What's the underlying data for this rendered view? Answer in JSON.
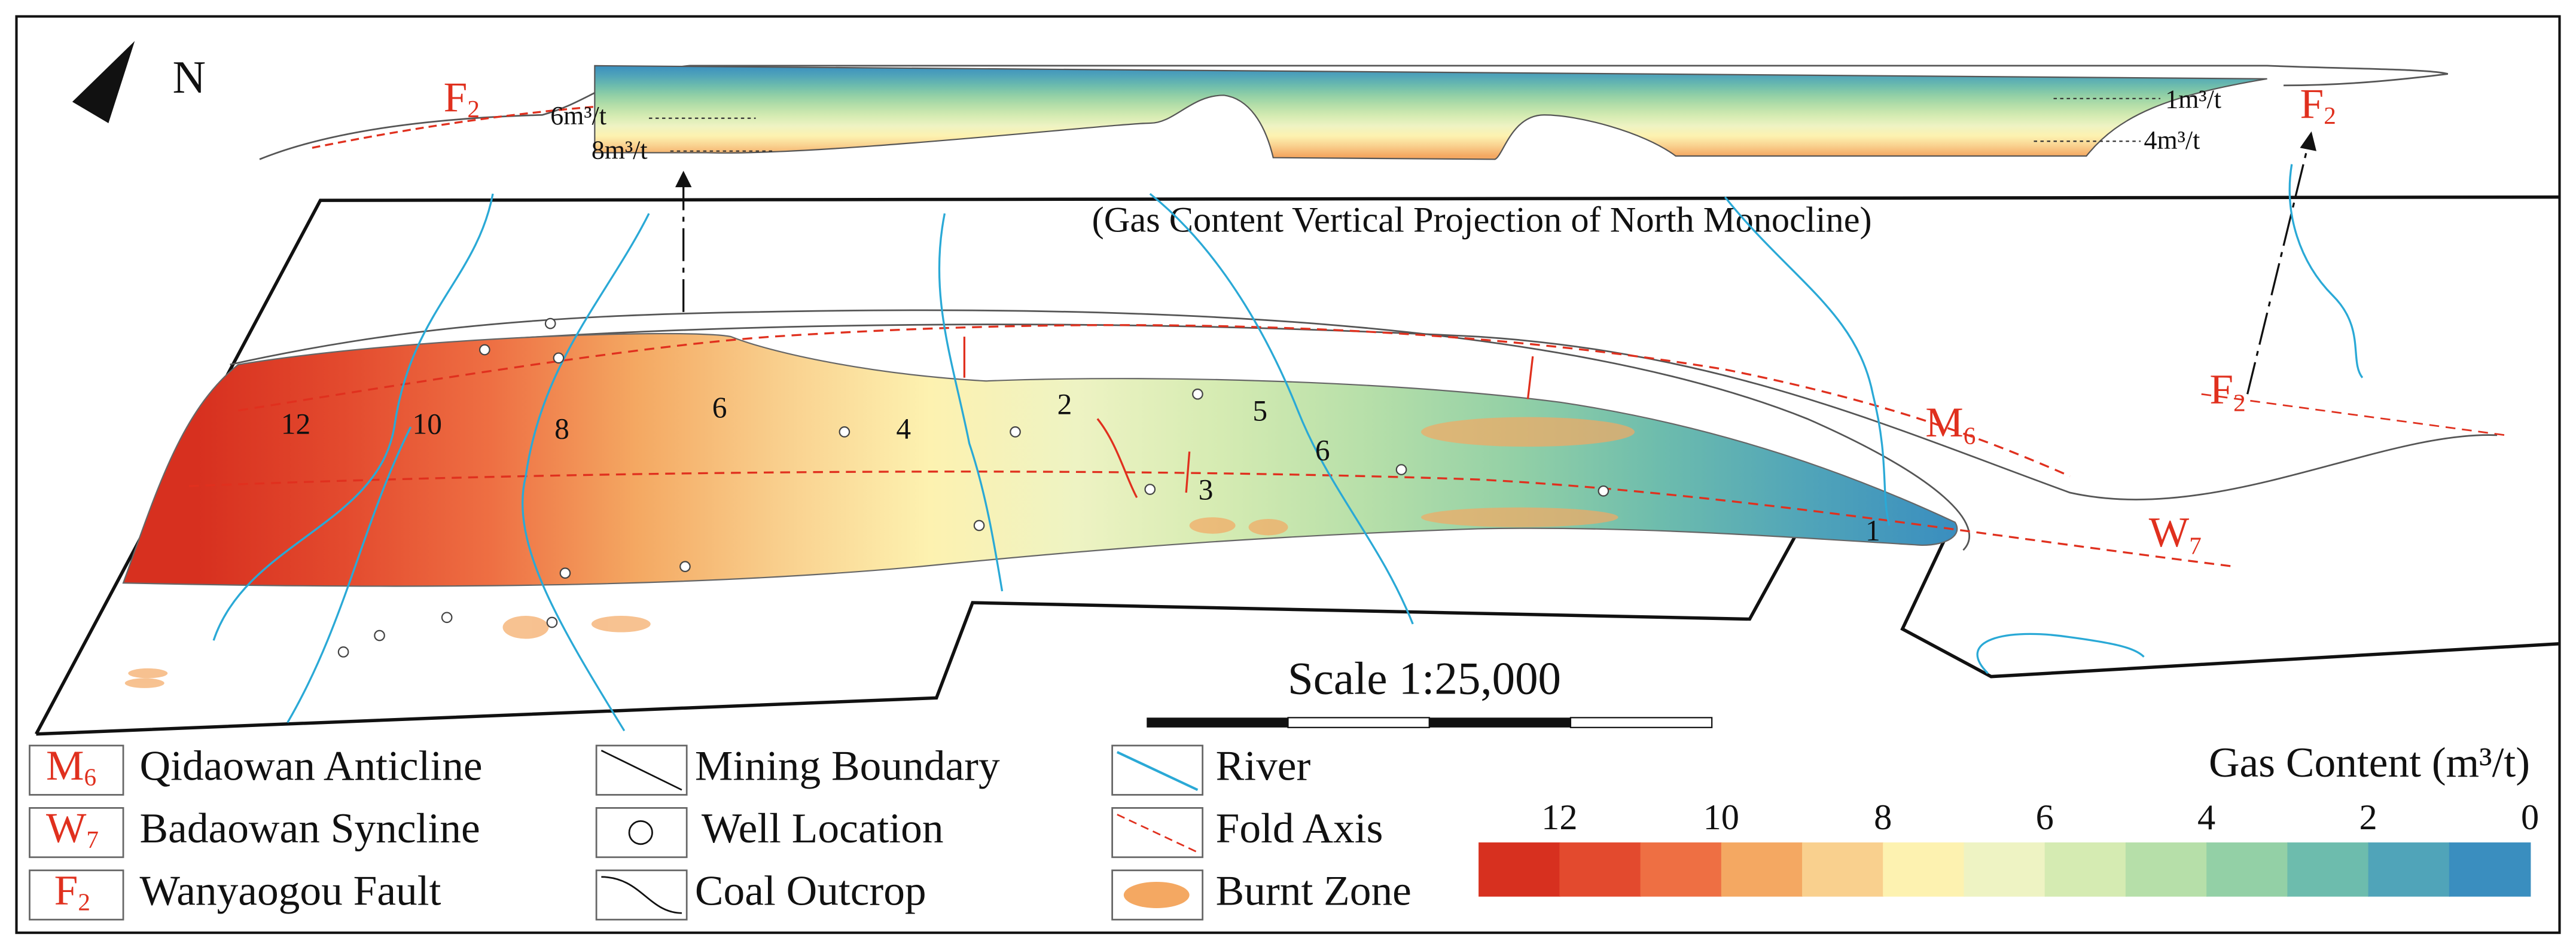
{
  "north": "N",
  "projection": {
    "title": "(Gas Content Vertical Projection of North Monocline)",
    "fault_left": {
      "letter": "F",
      "sub": "2"
    },
    "fault_right": {
      "letter": "F",
      "sub": "2"
    },
    "isolines": [
      "6m³/t",
      "8m³/t",
      "1m³/t",
      "4m³/t"
    ]
  },
  "map": {
    "contour_labels": [
      12,
      10,
      8,
      6,
      4,
      2,
      5,
      6,
      3,
      1
    ],
    "anticline": {
      "letter": "M",
      "sub": "6"
    },
    "fault": {
      "letter": "F",
      "sub": "2"
    },
    "syncline": {
      "letter": "W",
      "sub": "7"
    }
  },
  "scale": "Scale  1:25,000",
  "legend": [
    {
      "symbol": {
        "letter": "M",
        "sub": "6"
      },
      "text": "Qidaowan Anticline"
    },
    {
      "symbol": {
        "letter": "W",
        "sub": "7"
      },
      "text": "Badaowan Syncline"
    },
    {
      "symbol": {
        "letter": "F",
        "sub": "2"
      },
      "text": "Wanyaogou Fault"
    },
    {
      "text": "Mining Boundary"
    },
    {
      "text": "Well Location"
    },
    {
      "text": "Coal Outcrop"
    },
    {
      "text": "River"
    },
    {
      "text": "Fold Axis"
    },
    {
      "text": "Burnt Zone"
    }
  ],
  "colorbar": {
    "title": "Gas Content (m³/t)",
    "lim": [
      13,
      0
    ],
    "ticks": [
      12,
      10,
      8,
      6,
      4,
      2,
      0
    ],
    "colors": [
      "#d7301f",
      "#e34a2e",
      "#ee6f43",
      "#f4a862",
      "#f9d08e",
      "#fdf2b0",
      "#eef3c3",
      "#d5ebb2",
      "#b6dfa9",
      "#93d0a6",
      "#6dbcad",
      "#50a4b9",
      "#3a8ebf"
    ]
  }
}
